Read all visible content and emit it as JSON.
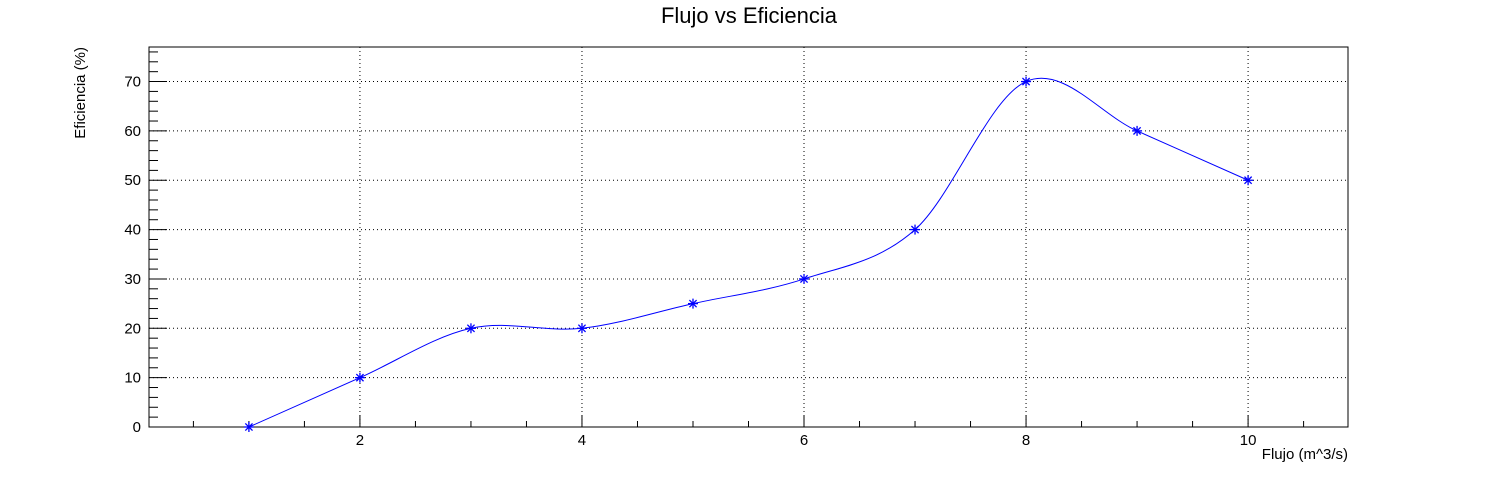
{
  "chart_data": {
    "type": "line",
    "title": "Flujo vs Eficiencia",
    "xlabel": "Flujo (m^3/s)",
    "ylabel": "Eficiencia (%)",
    "xlim": [
      0.1,
      10.9
    ],
    "ylim": [
      0,
      77
    ],
    "xticks": [
      "2",
      "4",
      "6",
      "8",
      "10"
    ],
    "yticks": [
      "0",
      "10",
      "20",
      "30",
      "40",
      "50",
      "60",
      "70"
    ],
    "grid": true,
    "marker": "star",
    "series": [
      {
        "color": "#0000ff",
        "x": [
          1,
          2,
          3,
          4,
          5,
          6,
          7,
          8,
          9,
          10
        ],
        "y": [
          0,
          10,
          20,
          20,
          25,
          30,
          40,
          70,
          60,
          50
        ]
      }
    ]
  }
}
